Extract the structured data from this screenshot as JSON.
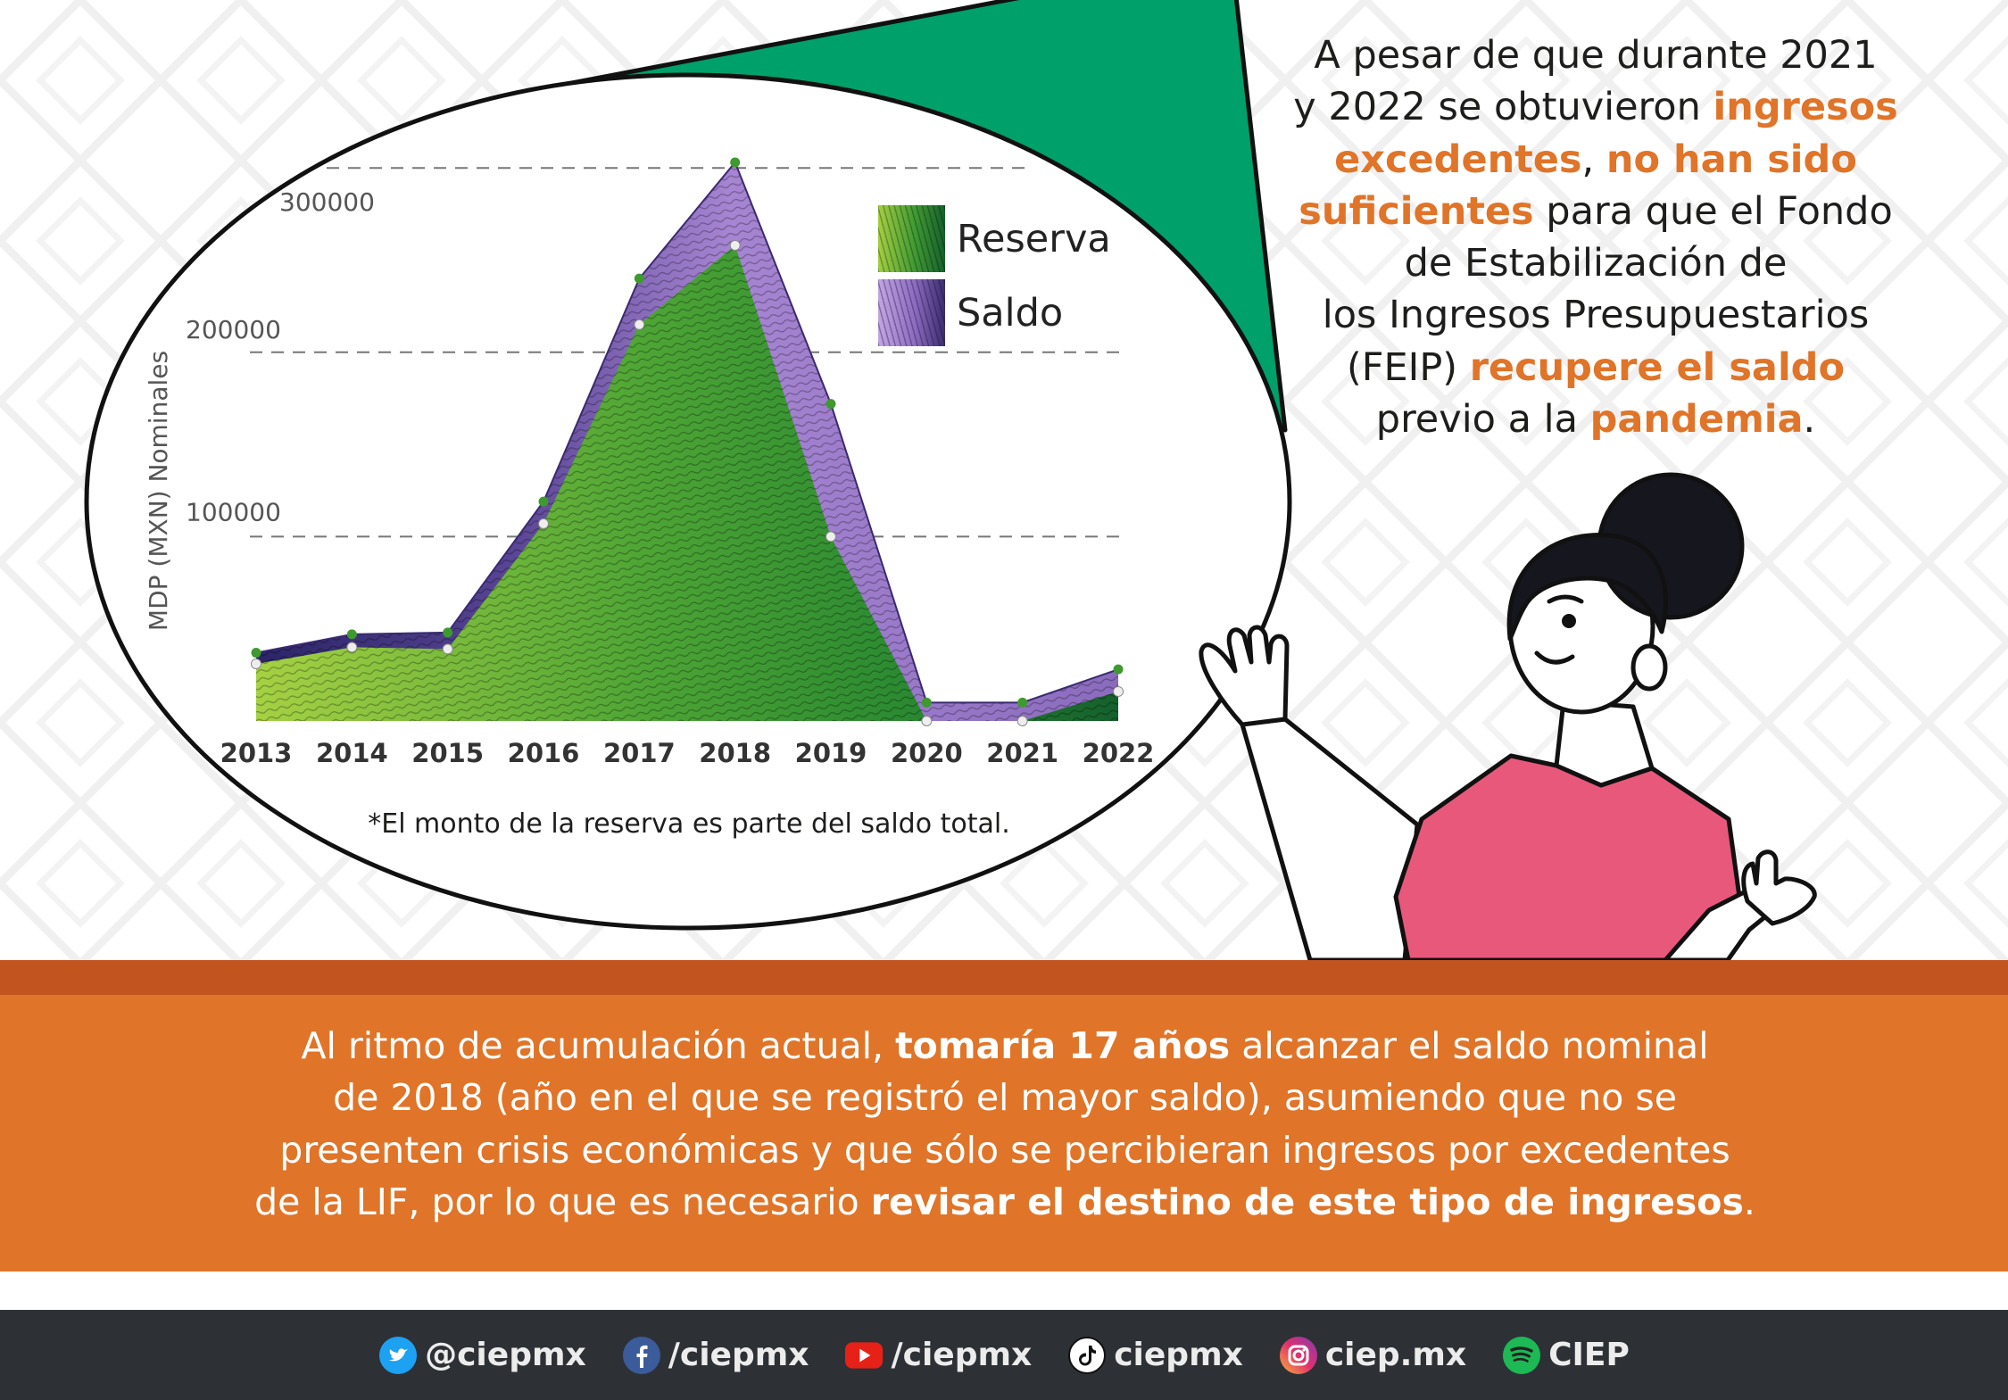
{
  "right_text": {
    "lines": [
      [
        {
          "t": "A pesar de que durante 2021",
          "hl": false
        }
      ],
      [
        {
          "t": "y 2022 se obtuvieron ",
          "hl": false
        },
        {
          "t": "ingresos",
          "hl": true
        }
      ],
      [
        {
          "t": "excedentes",
          "hl": true
        },
        {
          "t": ", ",
          "hl": false
        },
        {
          "t": "no han sido",
          "hl": true
        }
      ],
      [
        {
          "t": "suficientes",
          "hl": true
        },
        {
          "t": " para que el Fondo",
          "hl": false
        }
      ],
      [
        {
          "t": "de Estabilización de",
          "hl": false
        }
      ],
      [
        {
          "t": "los Ingresos Presupuestarios",
          "hl": false
        }
      ],
      [
        {
          "t": "(FEIP) ",
          "hl": false
        },
        {
          "t": "recupere el saldo",
          "hl": true
        }
      ],
      [
        {
          "t": "previo a la ",
          "hl": false
        },
        {
          "t": "pandemia",
          "hl": true
        },
        {
          "t": ".",
          "hl": false
        }
      ]
    ]
  },
  "chart_data": {
    "type": "area",
    "categories": [
      "2013",
      "2014",
      "2015",
      "2016",
      "2017",
      "2018",
      "2019",
      "2020",
      "2021",
      "2022"
    ],
    "series": [
      {
        "name": "Reserva",
        "values": [
          31000,
          40000,
          39000,
          107000,
          215000,
          258000,
          100000,
          0,
          0,
          16000
        ]
      },
      {
        "name": "Saldo",
        "values": [
          37000,
          47000,
          48000,
          119000,
          240000,
          303000,
          172000,
          10000,
          10000,
          28000
        ]
      }
    ],
    "ylabel": "MDP (MXN) Nominales",
    "xlabel": "",
    "y_ticks": [
      100000,
      200000,
      300000
    ],
    "y_tick_labels": [
      "100000",
      "200000",
      "300000"
    ],
    "ylim": [
      0,
      320000
    ],
    "grid": "dashed horizontal",
    "legend": {
      "placement": "top-right",
      "items": [
        "Reserva",
        "Saldo"
      ]
    },
    "note": "*El monto de la reserva es parte del saldo total."
  },
  "bottom_text": {
    "lines": [
      [
        {
          "t": "Al ritmo de acumulación actual, ",
          "b": false
        },
        {
          "t": "tomaría 17 años",
          "b": true
        },
        {
          "t": " alcanzar el saldo nominal",
          "b": false
        }
      ],
      [
        {
          "t": "de 2018 (año en el que se registró el mayor saldo), asumiendo que no se",
          "b": false
        }
      ],
      [
        {
          "t": "presenten crisis económicas y que sólo se percibieran ingresos por excedentes",
          "b": false
        }
      ],
      [
        {
          "t": "de la LIF, por lo que es necesario ",
          "b": false
        },
        {
          "t": "revisar el destino de este tipo de ingresos",
          "b": true
        },
        {
          "t": ".",
          "b": false
        }
      ]
    ]
  },
  "social": [
    {
      "icon": "twitter-icon",
      "label": "@ciepmx"
    },
    {
      "icon": "facebook-icon",
      "label": "/ciepmx"
    },
    {
      "icon": "youtube-icon",
      "label": "/ciepmx"
    },
    {
      "icon": "tiktok-icon",
      "label": "ciepmx"
    },
    {
      "icon": "instagram-icon",
      "label": "ciep.mx"
    },
    {
      "icon": "spotify-icon",
      "label": "CIEP"
    }
  ],
  "colors": {
    "accent_orange": "#e07428",
    "band_dark": "#c2541f",
    "speech_green": "#00a06a",
    "reserva_green": "#3f9a32",
    "saldo_purple": "#8c6bbf",
    "footer": "#2d3035"
  }
}
